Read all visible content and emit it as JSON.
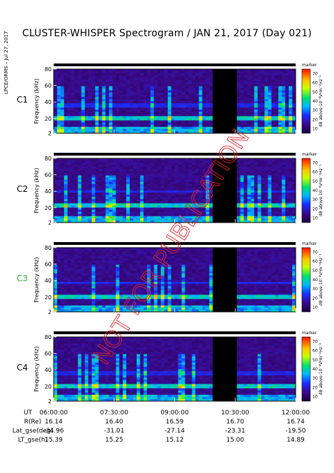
{
  "title": "CLUSTER-WHISPER Spectrogram / JAN 21, 2017 (Day 021)",
  "side_label": "LPCE/ORMS – Jul 27, 2017",
  "watermark": "NOT FOR PUBLICATION",
  "panels": [
    {
      "name": "C1",
      "name_color": "#000000"
    },
    {
      "name": "C2",
      "name_color": "#000000"
    },
    {
      "name": "C3",
      "name_color": "#2aa83a"
    },
    {
      "name": "C4",
      "name_color": "#000000"
    }
  ],
  "colorbar": {
    "marker_label": "marker",
    "ticks": [
      "70",
      "60",
      "50",
      "40",
      "30",
      "20",
      "10"
    ],
    "label": "dB above 10⁻⁸V²m⁻²Hz⁻¹"
  },
  "chart_data": {
    "type": "heatmap",
    "ylabel": "Frequency (kHz)",
    "yticks": [
      "80",
      "60",
      "40",
      "20",
      "2"
    ],
    "ylim": [
      2,
      80
    ],
    "clim": [
      5,
      75
    ],
    "x_ticks": [
      "06:00:00",
      "07:30:00",
      "09:00:00",
      "10:30:00",
      "12:00:00"
    ],
    "data_gap": {
      "start": "10:00",
      "end": "10:30",
      "panels": [
        "C1",
        "C2",
        "C3",
        "C4"
      ]
    },
    "emission_bands_khz": {
      "C1": [
        18,
        36
      ],
      "C2": [
        20,
        40
      ],
      "C3": [
        18,
        38
      ],
      "C4": [
        18,
        36
      ]
    }
  },
  "ephemeris": {
    "rows": [
      {
        "label": "UT",
        "values": [
          "06:00:00",
          "07:30:00",
          "09:00:00",
          "10:30:00",
          "12:00:00"
        ]
      },
      {
        "label": "R(Re)",
        "values": [
          "16.14",
          "16.40",
          "16.59",
          "16.70",
          "16.74"
        ]
      },
      {
        "label": "Lat_gse(deg)",
        "values": [
          "-34.96",
          "-31.01",
          "-27.14",
          "-23.31",
          "-19.50"
        ]
      },
      {
        "label": "LT_gse(h)",
        "values": [
          "15.39",
          "15.25",
          "15.12",
          "15.00",
          "14.89"
        ]
      }
    ]
  }
}
